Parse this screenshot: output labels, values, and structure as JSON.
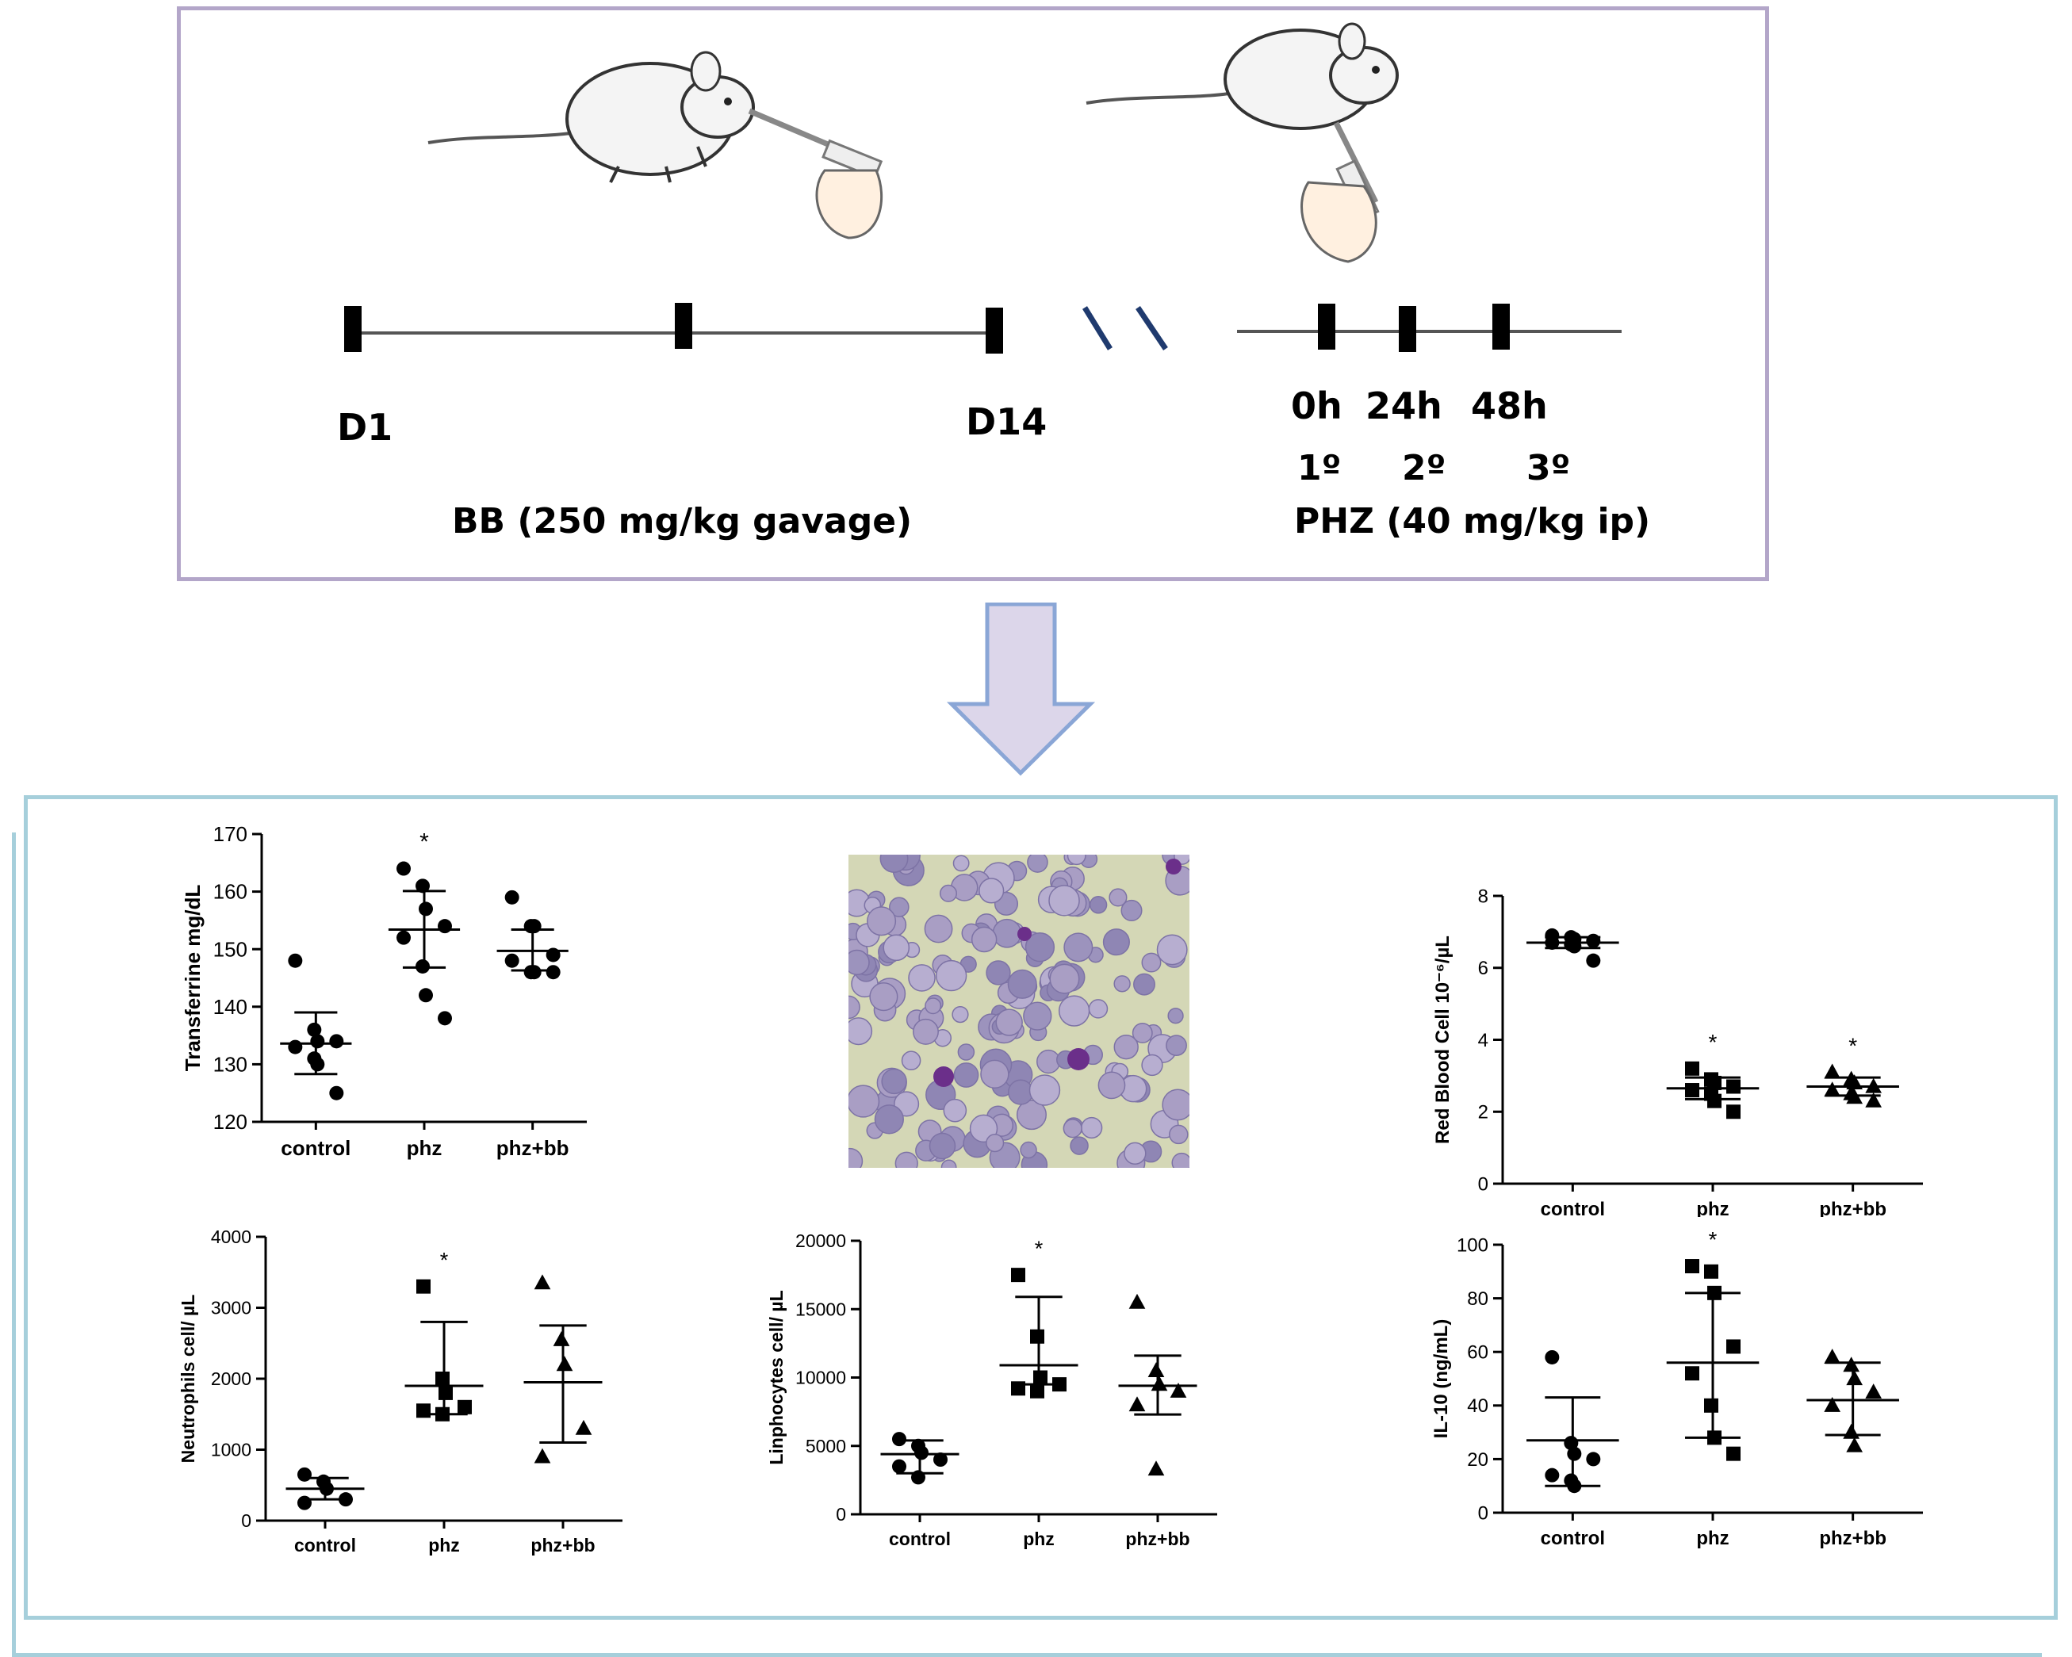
{
  "timeline": {
    "day_start": "D1",
    "day_end": "D14",
    "bb_treatment": "BB (250 mg/kg gavage)",
    "time_0": "0h",
    "time_24": "24h",
    "time_48": "48h",
    "dose_1": "1º",
    "dose_2": "2º",
    "dose_3": "3º",
    "phz_treatment": "PHZ (40 mg/kg ip)"
  },
  "colors": {
    "top_border": "#b3a6c9",
    "bottom_border": "#a6cfdb",
    "arrow_fill": "#dcd6ea",
    "arrow_stroke": "#8aa6d6",
    "break_marks": "#1f3a6e"
  },
  "chart_data": [
    {
      "id": "transferrin",
      "type": "scatter",
      "ylabel": "Transferrine mg/dL",
      "ylim": [
        120,
        170
      ],
      "yticks": [
        120,
        130,
        140,
        150,
        160,
        170
      ],
      "categories": [
        "control",
        "phz",
        "phz+bb"
      ],
      "marker": "circle",
      "points": [
        [
          148,
          136,
          134,
          134,
          133,
          131,
          130,
          125
        ],
        [
          164,
          161,
          157,
          154,
          152,
          147,
          142,
          138
        ],
        [
          159,
          154,
          154,
          149,
          148,
          146,
          146,
          146
        ]
      ],
      "mean": [
        133.6,
        153.4,
        149.7
      ],
      "sd_low": [
        128.3,
        146.8,
        146.3
      ],
      "sd_high": [
        139,
        160.1,
        153.4
      ],
      "significance": [
        "",
        "*",
        ""
      ]
    },
    {
      "id": "rbc",
      "type": "scatter",
      "ylabel": "Red Blood Cell 10⁻⁶/µL",
      "ylim": [
        0,
        8
      ],
      "yticks": [
        0,
        2,
        4,
        6,
        8
      ],
      "categories": [
        "control",
        "phz",
        "phz+bb"
      ],
      "markers": [
        "circle",
        "square",
        "triangle"
      ],
      "points": [
        [
          6.9,
          6.85,
          6.8,
          6.75,
          6.7,
          6.65,
          6.6,
          6.2
        ],
        [
          3.2,
          2.9,
          2.8,
          2.7,
          2.6,
          2.5,
          2.3,
          2.0
        ],
        [
          3.1,
          2.9,
          2.8,
          2.7,
          2.6,
          2.5,
          2.4,
          2.3
        ]
      ],
      "mean": [
        6.7,
        2.65,
        2.7
      ],
      "sd_low": [
        6.55,
        2.35,
        2.45
      ],
      "sd_high": [
        6.85,
        2.95,
        2.95
      ],
      "significance": [
        "",
        "*",
        "*"
      ]
    },
    {
      "id": "neutrophils",
      "type": "scatter",
      "ylabel": "Neutrophils cell/ µL",
      "ylim": [
        0,
        4000
      ],
      "yticks": [
        0,
        1000,
        2000,
        3000,
        4000
      ],
      "categories": [
        "control",
        "phz",
        "phz+bb"
      ],
      "markers": [
        "circle",
        "square",
        "triangle"
      ],
      "points": [
        [
          650,
          550,
          450,
          300,
          250
        ],
        [
          3300,
          2000,
          1800,
          1600,
          1550,
          1500
        ],
        [
          3350,
          2550,
          2200,
          1300,
          900
        ]
      ],
      "mean": [
        450,
        1900,
        1950
      ],
      "sd_low": [
        300,
        1500,
        1100
      ],
      "sd_high": [
        600,
        2800,
        2750
      ],
      "significance": [
        "",
        "*",
        ""
      ]
    },
    {
      "id": "lymphocytes",
      "type": "scatter",
      "ylabel": "Linphocytes cell/ µL",
      "ylim": [
        0,
        20000
      ],
      "yticks": [
        0,
        5000,
        10000,
        15000,
        20000
      ],
      "categories": [
        "control",
        "phz",
        "phz+bb"
      ],
      "markers": [
        "circle",
        "square",
        "triangle"
      ],
      "points": [
        [
          5500,
          5000,
          4500,
          4000,
          3500,
          2700
        ],
        [
          17500,
          13000,
          10000,
          9500,
          9200,
          9000
        ],
        [
          15500,
          10500,
          9500,
          9000,
          8000,
          3300
        ]
      ],
      "mean": [
        4400,
        10900,
        9400
      ],
      "sd_low": [
        3000,
        9500,
        7300
      ],
      "sd_high": [
        5400,
        15900,
        11600
      ],
      "significance": [
        "",
        "*",
        ""
      ]
    },
    {
      "id": "il10",
      "type": "scatter",
      "ylabel": "IL-10 (ng/mL)",
      "ylim": [
        0,
        100
      ],
      "yticks": [
        0,
        20,
        40,
        60,
        80,
        100
      ],
      "categories": [
        "control",
        "phz",
        "phz+bb"
      ],
      "markers": [
        "circle",
        "square",
        "triangle"
      ],
      "points": [
        [
          58,
          26,
          22,
          20,
          14,
          12,
          10
        ],
        [
          92,
          90,
          82,
          62,
          52,
          40,
          28,
          22
        ],
        [
          58,
          55,
          50,
          45,
          40,
          30,
          25
        ]
      ],
      "mean": [
        27,
        56,
        42
      ],
      "sd_low": [
        10,
        28,
        29
      ],
      "sd_high": [
        43,
        82,
        56
      ],
      "significance": [
        "",
        "*",
        ""
      ]
    }
  ]
}
